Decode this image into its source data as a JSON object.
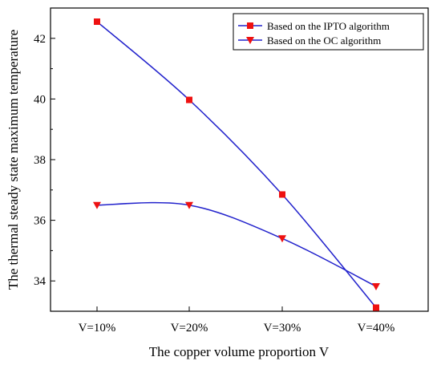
{
  "chart_data": {
    "type": "line",
    "title": "",
    "xlabel": "The copper volume proportion V",
    "ylabel": "The thermal steady state maximum temperature",
    "categories": [
      "V=10%",
      "V=20%",
      "V=30%",
      "V=40%"
    ],
    "ylim": [
      33,
      43
    ],
    "yticks": [
      34,
      36,
      38,
      40,
      42
    ],
    "grid": false,
    "legend_position": "top-right",
    "series": [
      {
        "name": "Based on the IPTO algorithm",
        "values": [
          42.55,
          39.97,
          36.85,
          33.12
        ],
        "marker": "square",
        "line_color": "#2222cc",
        "marker_color": "#ee1111"
      },
      {
        "name": "Based on the OC algorithm",
        "values": [
          36.5,
          36.5,
          35.4,
          33.82
        ],
        "marker": "triangle-down",
        "line_color": "#2222cc",
        "marker_color": "#ee1111"
      }
    ]
  }
}
